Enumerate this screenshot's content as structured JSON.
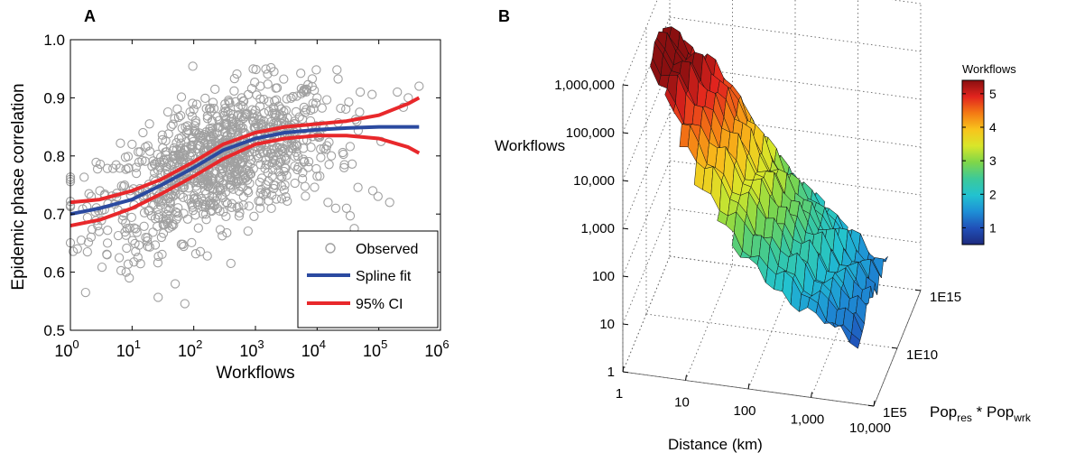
{
  "chart_data": [
    {
      "panel_label": "A",
      "type": "scatter",
      "xlabel": "Workflows",
      "ylabel": "Epidemic phase correlation",
      "xscale": "log",
      "xlim": [
        1,
        1000000
      ],
      "ylim": [
        0.5,
        1.0
      ],
      "x_ticks": [
        {
          "base": "10",
          "exp": "0",
          "value": 1
        },
        {
          "base": "10",
          "exp": "1",
          "value": 10
        },
        {
          "base": "10",
          "exp": "2",
          "value": 100
        },
        {
          "base": "10",
          "exp": "3",
          "value": 1000
        },
        {
          "base": "10",
          "exp": "4",
          "value": 10000
        },
        {
          "base": "10",
          "exp": "5",
          "value": 100000
        },
        {
          "base": "10",
          "exp": "6",
          "value": 1000000
        }
      ],
      "y_ticks": [
        "0.5",
        "0.6",
        "0.7",
        "0.8",
        "0.9",
        "1.0"
      ],
      "legend_position": "bottom-right",
      "series": [
        {
          "name": "Observed",
          "kind": "points",
          "color": "#a0a0a0",
          "marker": "open-circle",
          "trend": [
            [
              1,
              0.7
            ],
            [
              10,
              0.72
            ],
            [
              100,
              0.775
            ],
            [
              1000,
              0.82
            ],
            [
              10000,
              0.835
            ],
            [
              100000,
              0.84
            ],
            [
              500000,
              0.84
            ]
          ],
          "spread": 0.055,
          "n_points": 1000,
          "points": [
            [
              1,
              0.715
            ],
            [
              1.3,
              0.64
            ],
            [
              1.5,
              0.655
            ],
            [
              2,
              0.735
            ],
            [
              3,
              0.74
            ],
            [
              4,
              0.65
            ],
            [
              7,
              0.69
            ],
            [
              8,
              0.6
            ],
            [
              9,
              0.59
            ],
            [
              10,
              0.82
            ],
            [
              15,
              0.84
            ],
            [
              30,
              0.66
            ],
            [
              50,
              0.58
            ],
            [
              100,
              0.88
            ],
            [
              200,
              0.86
            ],
            [
              400,
              0.615
            ],
            [
              600,
              0.9
            ],
            [
              1200,
              0.92
            ],
            [
              2000,
              0.88
            ],
            [
              3000,
              0.75
            ],
            [
              6000,
              0.91
            ],
            [
              10000,
              0.9
            ],
            [
              15000,
              0.72
            ],
            [
              20000,
              0.71
            ],
            [
              30000,
              0.71
            ],
            [
              40000,
              0.675
            ],
            [
              50000,
              0.91
            ],
            [
              80000,
              0.74
            ],
            [
              150000,
              0.72
            ],
            [
              200000,
              0.91
            ],
            [
              300000,
              0.9
            ],
            [
              450000,
              0.92
            ]
          ]
        },
        {
          "name": "Spline fit",
          "kind": "line",
          "color": "#2b4aa0",
          "x": [
            1,
            3,
            10,
            30,
            100,
            300,
            1000,
            3000,
            10000,
            30000,
            100000,
            300000,
            450000
          ],
          "y": [
            0.7,
            0.71,
            0.725,
            0.75,
            0.78,
            0.81,
            0.83,
            0.84,
            0.845,
            0.848,
            0.85,
            0.85,
            0.85
          ]
        },
        {
          "name": "95% CI",
          "kind": "line",
          "color": "#e8282b",
          "x": [
            1,
            3,
            10,
            30,
            100,
            300,
            1000,
            3000,
            10000,
            30000,
            100000,
            300000,
            450000
          ],
          "y": [
            0.72,
            0.725,
            0.74,
            0.76,
            0.79,
            0.82,
            0.84,
            0.85,
            0.855,
            0.86,
            0.87,
            0.89,
            0.9
          ]
        },
        {
          "name": "",
          "kind": "line",
          "color": "#e8282b",
          "x": [
            1,
            3,
            10,
            30,
            100,
            300,
            1000,
            3000,
            10000,
            30000,
            100000,
            300000,
            450000
          ],
          "y": [
            0.68,
            0.69,
            0.71,
            0.735,
            0.765,
            0.795,
            0.82,
            0.83,
            0.835,
            0.835,
            0.83,
            0.815,
            0.805
          ]
        }
      ]
    },
    {
      "panel_label": "B",
      "type": "surface3d",
      "zlabel": "Workflows",
      "xlabel": "Distance (km)",
      "ylabel_parts": {
        "pre": "Pop",
        "sub1": "res",
        "mid": " * Pop",
        "sub2": "wrk"
      },
      "x_ticks": [
        "1",
        "10",
        "100",
        "1,000",
        "10,000"
      ],
      "y_ticks": [
        "1E5",
        "1E10",
        "1E15"
      ],
      "z_ticks": [
        "1",
        "10",
        "100",
        "1,000",
        "10,000",
        "100,000",
        "1,000,000"
      ],
      "zscale": "log",
      "colorbar": {
        "title": "Workflows",
        "ticks": [
          "1",
          "2",
          "3",
          "4",
          "5"
        ],
        "range": [
          0.5,
          5.4
        ],
        "colors": [
          "#1d2a7e",
          "#2050b8",
          "#1e8fd6",
          "#22c2d0",
          "#3cc99a",
          "#7ed64a",
          "#d8e62a",
          "#f8c41c",
          "#f47a14",
          "#e2241e",
          "#8a0f10"
        ]
      }
    }
  ]
}
